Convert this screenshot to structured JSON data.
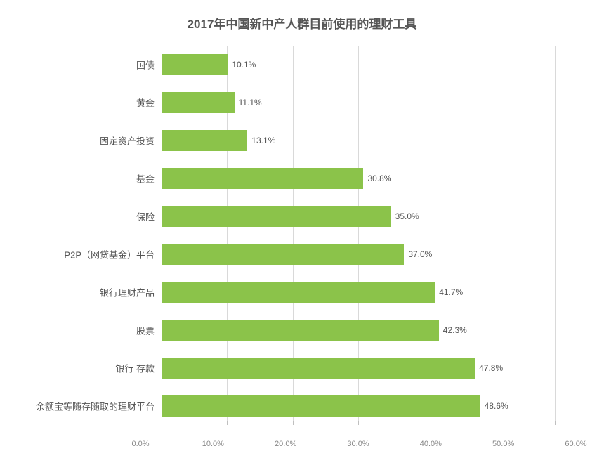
{
  "chart": {
    "type": "bar-horizontal",
    "title": "2017年中国新中产人群目前使用的理财工具",
    "title_fontsize": 17,
    "title_color": "#555555",
    "background_color": "#ffffff",
    "bar_color": "#8bc34a",
    "label_color": "#555555",
    "label_fontsize": 13,
    "value_label_fontsize": 12,
    "value_label_color": "#555555",
    "grid_color": "#d9d9d9",
    "axis_line_color": "#bfbfbf",
    "tick_label_color": "#888888",
    "tick_label_fontsize": 11,
    "x_min": 0.0,
    "x_max": 60.0,
    "x_tick_step": 10.0,
    "x_ticks": [
      "0.0%",
      "10.0%",
      "20.0%",
      "30.0%",
      "40.0%",
      "50.0%",
      "60.0%"
    ],
    "bar_band_height_pct": 10.0,
    "bar_fill_ratio": 0.55,
    "categories": [
      {
        "label": "国债",
        "value": 10.1,
        "value_label": "10.1%"
      },
      {
        "label": "黄金",
        "value": 11.1,
        "value_label": "11.1%"
      },
      {
        "label": "固定资产投资",
        "value": 13.1,
        "value_label": "13.1%"
      },
      {
        "label": "基金",
        "value": 30.8,
        "value_label": "30.8%"
      },
      {
        "label": "保险",
        "value": 35.0,
        "value_label": "35.0%"
      },
      {
        "label": "P2P（网贷基金）平台",
        "value": 37.0,
        "value_label": "37.0%"
      },
      {
        "label": "银行理财产品",
        "value": 41.7,
        "value_label": "41.7%"
      },
      {
        "label": "股票",
        "value": 42.3,
        "value_label": "42.3%"
      },
      {
        "label": "银行 存款",
        "value": 47.8,
        "value_label": "47.8%"
      },
      {
        "label": "余额宝等随存随取的理财平台",
        "value": 48.6,
        "value_label": "48.6%"
      }
    ]
  }
}
